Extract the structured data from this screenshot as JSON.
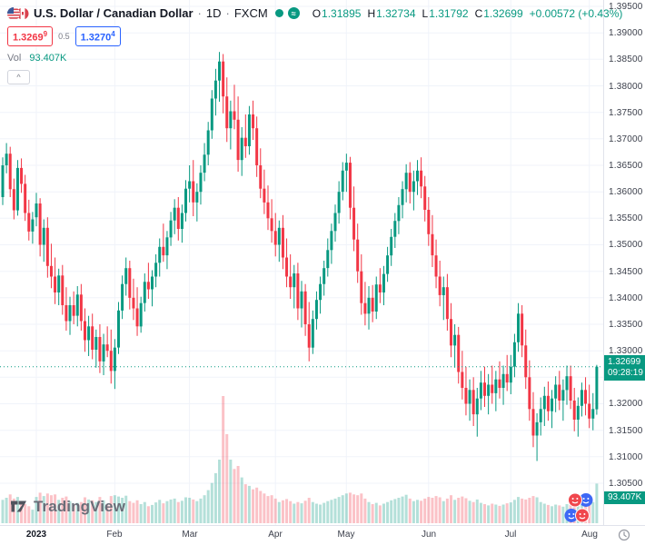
{
  "header": {
    "symbol_name": "U.S. Dollar / Canadian Dollar",
    "separator": "·",
    "interval": "1D",
    "exchange": "FXCM",
    "ohlc": {
      "o_label": "O",
      "o": "1.31895",
      "h_label": "H",
      "h": "1.32734",
      "l_label": "L",
      "l": "1.31792",
      "c_label": "C",
      "c": "1.32699",
      "change": "+0.00572 (+0.43%)"
    },
    "bid": "1.3269",
    "bid_sup": "9",
    "spread": "0.5",
    "ask": "1.3270",
    "ask_sup": "4",
    "vol_label": "Vol",
    "vol_value": "93.407K",
    "collapse_label": "^",
    "approx_icon_glyph": "≈"
  },
  "footer": {
    "logo_text": "TradingView"
  },
  "colors": {
    "up": "#089981",
    "down": "#f23645",
    "vol_up": "rgba(8,153,129,0.30)",
    "vol_down": "rgba(242,54,69,0.30)",
    "accent_blue": "#2962ff",
    "accent_red": "#f23645",
    "grid": "#f0f3fa"
  },
  "chart_data": {
    "type": "candlestick",
    "title": "U.S. Dollar / Canadian Dollar · 1D · FXCM",
    "ylim": [
      1.305,
      1.395
    ],
    "price_step": 0.005,
    "grid": true,
    "y_axis": {
      "ticks": [
        "1.39500",
        "1.39000",
        "1.38500",
        "1.38000",
        "1.37500",
        "1.37000",
        "1.36500",
        "1.36000",
        "1.35500",
        "1.35000",
        "1.34500",
        "1.34000",
        "1.33500",
        "1.33000",
        "1.32500",
        "1.32000",
        "1.31500",
        "1.31000",
        "1.30500"
      ]
    },
    "x_axis": {
      "ticks": [
        {
          "label": "2023",
          "index": 9,
          "bold": true
        },
        {
          "label": "Feb",
          "index": 30,
          "bold": false
        },
        {
          "label": "Mar",
          "index": 50,
          "bold": false
        },
        {
          "label": "Apr",
          "index": 73,
          "bold": false
        },
        {
          "label": "May",
          "index": 92,
          "bold": false
        },
        {
          "label": "Jun",
          "index": 114,
          "bold": false
        },
        {
          "label": "Jul",
          "index": 136,
          "bold": false
        },
        {
          "label": "Aug",
          "index": 157,
          "bold": false
        }
      ]
    },
    "last": {
      "price": "1.32699",
      "countdown": "09:28:19"
    },
    "volume_label": "93.407K",
    "columns": [
      "open",
      "high",
      "low",
      "close",
      "volume_k"
    ],
    "candles": [
      [
        1.359,
        1.3665,
        1.3575,
        1.365,
        55
      ],
      [
        1.365,
        1.3692,
        1.3635,
        1.3672,
        60
      ],
      [
        1.3672,
        1.3685,
        1.359,
        1.3605,
        68
      ],
      [
        1.3605,
        1.3625,
        1.3548,
        1.3565,
        58
      ],
      [
        1.3565,
        1.366,
        1.3555,
        1.3645,
        62
      ],
      [
        1.3645,
        1.3663,
        1.3598,
        1.3615,
        48
      ],
      [
        1.3615,
        1.3632,
        1.3545,
        1.356,
        45
      ],
      [
        1.356,
        1.3585,
        1.3508,
        1.3525,
        40
      ],
      [
        1.3525,
        1.3562,
        1.3502,
        1.3548,
        32
      ],
      [
        1.3552,
        1.3598,
        1.3535,
        1.3578,
        62
      ],
      [
        1.3578,
        1.3588,
        1.3478,
        1.35,
        72
      ],
      [
        1.35,
        1.3548,
        1.3468,
        1.3532,
        64
      ],
      [
        1.3532,
        1.3552,
        1.3438,
        1.346,
        70
      ],
      [
        1.346,
        1.3502,
        1.3418,
        1.344,
        66
      ],
      [
        1.344,
        1.3476,
        1.3388,
        1.341,
        68
      ],
      [
        1.341,
        1.3455,
        1.3386,
        1.3442,
        55
      ],
      [
        1.3442,
        1.3462,
        1.3368,
        1.3386,
        60
      ],
      [
        1.3386,
        1.342,
        1.3338,
        1.3356,
        63
      ],
      [
        1.3356,
        1.3402,
        1.333,
        1.3386,
        52
      ],
      [
        1.3386,
        1.3412,
        1.335,
        1.3366,
        45
      ],
      [
        1.3366,
        1.3422,
        1.3346,
        1.3406,
        48
      ],
      [
        1.3406,
        1.3426,
        1.3338,
        1.3356,
        50
      ],
      [
        1.3356,
        1.338,
        1.3298,
        1.332,
        61
      ],
      [
        1.332,
        1.3366,
        1.329,
        1.3346,
        56
      ],
      [
        1.3346,
        1.337,
        1.3284,
        1.3302,
        54
      ],
      [
        1.3302,
        1.334,
        1.3268,
        1.3326,
        50
      ],
      [
        1.3326,
        1.335,
        1.3258,
        1.328,
        62
      ],
      [
        1.328,
        1.3332,
        1.3254,
        1.3312,
        54
      ],
      [
        1.3312,
        1.3346,
        1.3288,
        1.33,
        42
      ],
      [
        1.33,
        1.334,
        1.3238,
        1.3262,
        64
      ],
      [
        1.3262,
        1.3322,
        1.3228,
        1.3306,
        66
      ],
      [
        1.3306,
        1.3392,
        1.3294,
        1.3376,
        63
      ],
      [
        1.3376,
        1.3442,
        1.336,
        1.3426,
        60
      ],
      [
        1.3426,
        1.3476,
        1.3404,
        1.3456,
        65
      ],
      [
        1.3456,
        1.347,
        1.3378,
        1.34,
        52
      ],
      [
        1.34,
        1.3436,
        1.3358,
        1.338,
        48
      ],
      [
        1.338,
        1.342,
        1.3328,
        1.3346,
        54
      ],
      [
        1.3346,
        1.3402,
        1.3334,
        1.339,
        45
      ],
      [
        1.339,
        1.3446,
        1.3374,
        1.343,
        50
      ],
      [
        1.343,
        1.3466,
        1.3398,
        1.3416,
        40
      ],
      [
        1.3416,
        1.3452,
        1.3384,
        1.344,
        43
      ],
      [
        1.344,
        1.3482,
        1.342,
        1.3466,
        49
      ],
      [
        1.3466,
        1.3512,
        1.344,
        1.3496,
        55
      ],
      [
        1.3496,
        1.354,
        1.3468,
        1.348,
        47
      ],
      [
        1.348,
        1.3526,
        1.3454,
        1.3514,
        52
      ],
      [
        1.3514,
        1.3562,
        1.3498,
        1.3546,
        56
      ],
      [
        1.3546,
        1.3586,
        1.352,
        1.357,
        58
      ],
      [
        1.357,
        1.359,
        1.3508,
        1.353,
        50
      ],
      [
        1.353,
        1.3576,
        1.3504,
        1.356,
        53
      ],
      [
        1.356,
        1.3622,
        1.3544,
        1.3606,
        61
      ],
      [
        1.3606,
        1.365,
        1.358,
        1.362,
        60
      ],
      [
        1.362,
        1.366,
        1.3554,
        1.358,
        56
      ],
      [
        1.358,
        1.3616,
        1.3544,
        1.36,
        52
      ],
      [
        1.36,
        1.365,
        1.3576,
        1.3636,
        58
      ],
      [
        1.3636,
        1.3692,
        1.362,
        1.367,
        66
      ],
      [
        1.367,
        1.3732,
        1.365,
        1.3716,
        78
      ],
      [
        1.3716,
        1.3792,
        1.37,
        1.3776,
        95
      ],
      [
        1.3776,
        1.3832,
        1.3744,
        1.381,
        118
      ],
      [
        1.381,
        1.3864,
        1.377,
        1.3846,
        150
      ],
      [
        1.3846,
        1.386,
        1.3748,
        1.378,
        300
      ],
      [
        1.378,
        1.3816,
        1.3694,
        1.372,
        210
      ],
      [
        1.372,
        1.3772,
        1.368,
        1.3752,
        150
      ],
      [
        1.3752,
        1.3802,
        1.3718,
        1.3736,
        128
      ],
      [
        1.3736,
        1.378,
        1.3638,
        1.366,
        135
      ],
      [
        1.366,
        1.3722,
        1.363,
        1.3702,
        108
      ],
      [
        1.3702,
        1.3746,
        1.3664,
        1.3686,
        92
      ],
      [
        1.3686,
        1.3762,
        1.367,
        1.3746,
        88
      ],
      [
        1.3746,
        1.3772,
        1.3698,
        1.372,
        80
      ],
      [
        1.372,
        1.3742,
        1.3628,
        1.365,
        84
      ],
      [
        1.365,
        1.3682,
        1.3588,
        1.3606,
        76
      ],
      [
        1.3606,
        1.3642,
        1.3558,
        1.358,
        70
      ],
      [
        1.358,
        1.3612,
        1.3528,
        1.355,
        64
      ],
      [
        1.355,
        1.3586,
        1.3504,
        1.3526,
        66
      ],
      [
        1.3526,
        1.356,
        1.3478,
        1.35,
        58
      ],
      [
        1.35,
        1.3546,
        1.3468,
        1.3532,
        50
      ],
      [
        1.3532,
        1.3556,
        1.3454,
        1.3476,
        54
      ],
      [
        1.3476,
        1.3512,
        1.342,
        1.344,
        57
      ],
      [
        1.344,
        1.3482,
        1.3398,
        1.342,
        52
      ],
      [
        1.342,
        1.3462,
        1.338,
        1.3446,
        46
      ],
      [
        1.3446,
        1.3466,
        1.3358,
        1.338,
        50
      ],
      [
        1.338,
        1.3432,
        1.3344,
        1.3412,
        47
      ],
      [
        1.3412,
        1.3426,
        1.3328,
        1.335,
        53
      ],
      [
        1.335,
        1.3392,
        1.328,
        1.3306,
        60
      ],
      [
        1.3306,
        1.3376,
        1.3294,
        1.336,
        50
      ],
      [
        1.336,
        1.3412,
        1.334,
        1.3396,
        46
      ],
      [
        1.3396,
        1.344,
        1.337,
        1.3426,
        44
      ],
      [
        1.3426,
        1.347,
        1.3404,
        1.3456,
        48
      ],
      [
        1.3456,
        1.3512,
        1.344,
        1.349,
        52
      ],
      [
        1.349,
        1.354,
        1.3464,
        1.3526,
        55
      ],
      [
        1.3526,
        1.3576,
        1.3506,
        1.356,
        58
      ],
      [
        1.356,
        1.362,
        1.354,
        1.36,
        62
      ],
      [
        1.36,
        1.3656,
        1.3584,
        1.364,
        66
      ],
      [
        1.364,
        1.3672,
        1.36,
        1.3655,
        70
      ],
      [
        1.3655,
        1.3666,
        1.3548,
        1.357,
        72
      ],
      [
        1.357,
        1.361,
        1.3488,
        1.351,
        68
      ],
      [
        1.351,
        1.354,
        1.3428,
        1.345,
        66
      ],
      [
        1.345,
        1.3482,
        1.3368,
        1.339,
        70
      ],
      [
        1.339,
        1.343,
        1.3348,
        1.337,
        58
      ],
      [
        1.337,
        1.3422,
        1.334,
        1.34,
        50
      ],
      [
        1.34,
        1.3424,
        1.3354,
        1.3374,
        45
      ],
      [
        1.3374,
        1.344,
        1.336,
        1.3425,
        48
      ],
      [
        1.3425,
        1.3456,
        1.339,
        1.341,
        42
      ],
      [
        1.341,
        1.346,
        1.3386,
        1.3445,
        46
      ],
      [
        1.3445,
        1.3496,
        1.343,
        1.348,
        50
      ],
      [
        1.348,
        1.353,
        1.346,
        1.3515,
        54
      ],
      [
        1.3515,
        1.356,
        1.3494,
        1.3545,
        57
      ],
      [
        1.3545,
        1.359,
        1.352,
        1.3575,
        60
      ],
      [
        1.3575,
        1.362,
        1.355,
        1.3605,
        63
      ],
      [
        1.3605,
        1.3652,
        1.358,
        1.3636,
        67
      ],
      [
        1.3636,
        1.3656,
        1.3578,
        1.36,
        58
      ],
      [
        1.36,
        1.364,
        1.3565,
        1.362,
        52
      ],
      [
        1.362,
        1.366,
        1.3594,
        1.364,
        55
      ],
      [
        1.364,
        1.3665,
        1.3588,
        1.361,
        53
      ],
      [
        1.361,
        1.363,
        1.3544,
        1.3566,
        58
      ],
      [
        1.3566,
        1.359,
        1.3498,
        1.352,
        62
      ],
      [
        1.352,
        1.3556,
        1.3458,
        1.348,
        60
      ],
      [
        1.348,
        1.351,
        1.3418,
        1.344,
        64
      ],
      [
        1.344,
        1.347,
        1.3384,
        1.3405,
        61
      ],
      [
        1.3405,
        1.344,
        1.3358,
        1.342,
        52
      ],
      [
        1.342,
        1.3445,
        1.3338,
        1.336,
        58
      ],
      [
        1.336,
        1.339,
        1.3288,
        1.331,
        66
      ],
      [
        1.331,
        1.335,
        1.3268,
        1.333,
        55
      ],
      [
        1.333,
        1.3345,
        1.3238,
        1.326,
        60
      ],
      [
        1.326,
        1.33,
        1.3208,
        1.323,
        63
      ],
      [
        1.323,
        1.327,
        1.3178,
        1.32,
        59
      ],
      [
        1.32,
        1.3246,
        1.3168,
        1.3226,
        53
      ],
      [
        1.3226,
        1.325,
        1.3158,
        1.318,
        50
      ],
      [
        1.318,
        1.323,
        1.3138,
        1.321,
        56
      ],
      [
        1.321,
        1.3262,
        1.3188,
        1.324,
        48
      ],
      [
        1.324,
        1.327,
        1.3194,
        1.3215,
        45
      ],
      [
        1.3215,
        1.3256,
        1.318,
        1.3236,
        42
      ],
      [
        1.3236,
        1.3272,
        1.32,
        1.322,
        46
      ],
      [
        1.322,
        1.3262,
        1.3186,
        1.3246,
        44
      ],
      [
        1.3246,
        1.328,
        1.321,
        1.323,
        41
      ],
      [
        1.323,
        1.3272,
        1.3198,
        1.3256,
        44
      ],
      [
        1.3256,
        1.3292,
        1.3224,
        1.324,
        47
      ],
      [
        1.324,
        1.3292,
        1.3218,
        1.327,
        49
      ],
      [
        1.327,
        1.3332,
        1.325,
        1.3316,
        55
      ],
      [
        1.3316,
        1.339,
        1.3298,
        1.337,
        62
      ],
      [
        1.337,
        1.3386,
        1.3288,
        1.331,
        58
      ],
      [
        1.331,
        1.334,
        1.3228,
        1.325,
        56
      ],
      [
        1.325,
        1.3282,
        1.3168,
        1.319,
        60
      ],
      [
        1.319,
        1.3222,
        1.3118,
        1.314,
        64
      ],
      [
        1.314,
        1.3182,
        1.3092,
        1.3165,
        61
      ],
      [
        1.3165,
        1.3212,
        1.314,
        1.319,
        50
      ],
      [
        1.319,
        1.3232,
        1.3158,
        1.3215,
        46
      ],
      [
        1.3215,
        1.3242,
        1.3168,
        1.3186,
        43
      ],
      [
        1.3186,
        1.3226,
        1.3154,
        1.321,
        40
      ],
      [
        1.321,
        1.3252,
        1.3184,
        1.3236,
        44
      ],
      [
        1.3236,
        1.3262,
        1.3188,
        1.3206,
        42
      ],
      [
        1.3206,
        1.3246,
        1.3168,
        1.3226,
        39
      ],
      [
        1.3226,
        1.3272,
        1.3198,
        1.3252,
        45
      ],
      [
        1.3252,
        1.3272,
        1.319,
        1.3206,
        44
      ],
      [
        1.3206,
        1.323,
        1.3148,
        1.317,
        50
      ],
      [
        1.317,
        1.3212,
        1.3138,
        1.3196,
        47
      ],
      [
        1.3196,
        1.324,
        1.3176,
        1.3226,
        44
      ],
      [
        1.3226,
        1.325,
        1.3178,
        1.32,
        48
      ],
      [
        1.32,
        1.3236,
        1.3154,
        1.3172,
        52
      ],
      [
        1.3172,
        1.322,
        1.315,
        1.319,
        50
      ],
      [
        1.31895,
        1.32734,
        1.31792,
        1.32699,
        93.407
      ]
    ]
  }
}
